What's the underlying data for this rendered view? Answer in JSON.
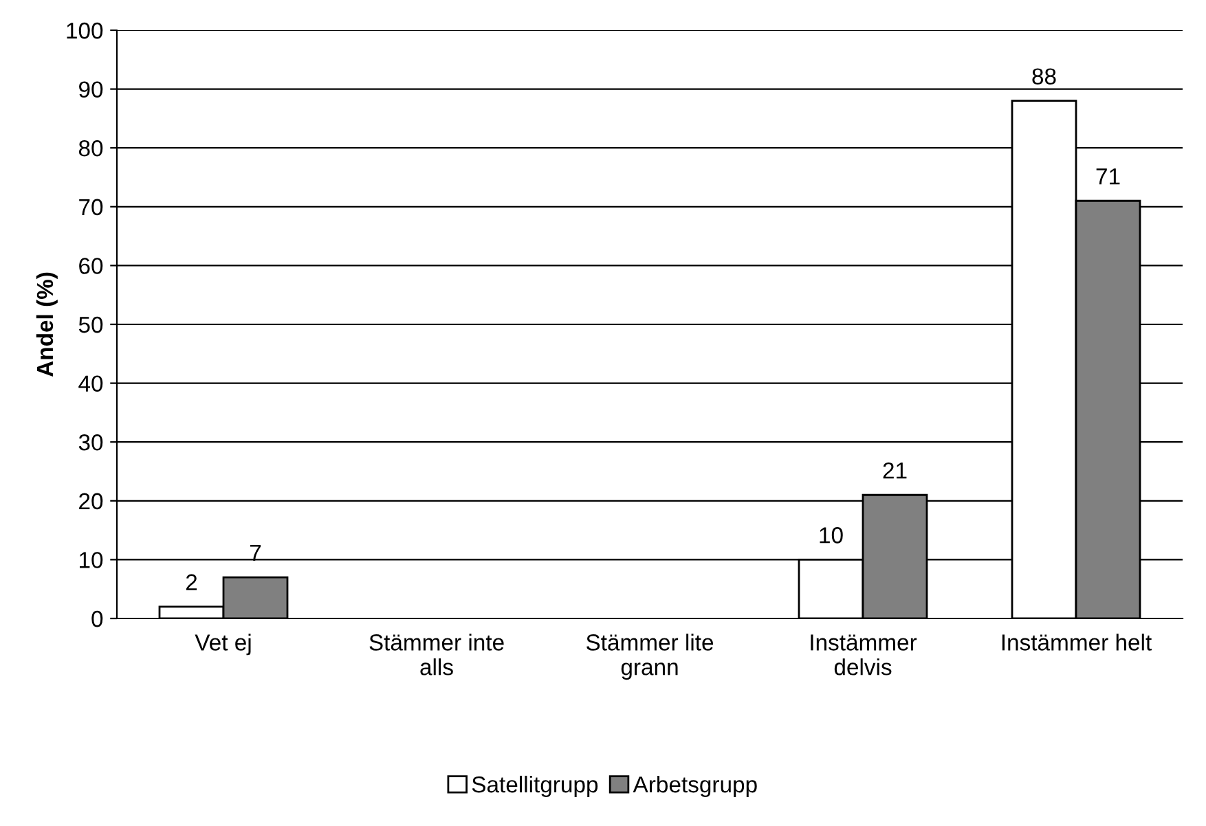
{
  "chart_data": {
    "type": "bar",
    "ylabel": "Andel (%)",
    "categories": [
      "Vet ej",
      "Stämmer inte\nalls",
      "Stämmer lite\ngrann",
      "Instämmer\ndelvis",
      "Instämmer helt"
    ],
    "series": [
      {
        "name": "Satellitgrupp",
        "color": "#ffffff",
        "values": [
          2,
          null,
          null,
          10,
          88
        ]
      },
      {
        "name": "Arbetsgrupp",
        "color": "#808080",
        "values": [
          7,
          null,
          null,
          21,
          71
        ]
      }
    ],
    "ylim": [
      0,
      100
    ],
    "yticks": [
      0,
      10,
      20,
      30,
      40,
      50,
      60,
      70,
      80,
      90,
      100
    ],
    "grid": "y",
    "legend": "bottom",
    "data_labels": true
  }
}
